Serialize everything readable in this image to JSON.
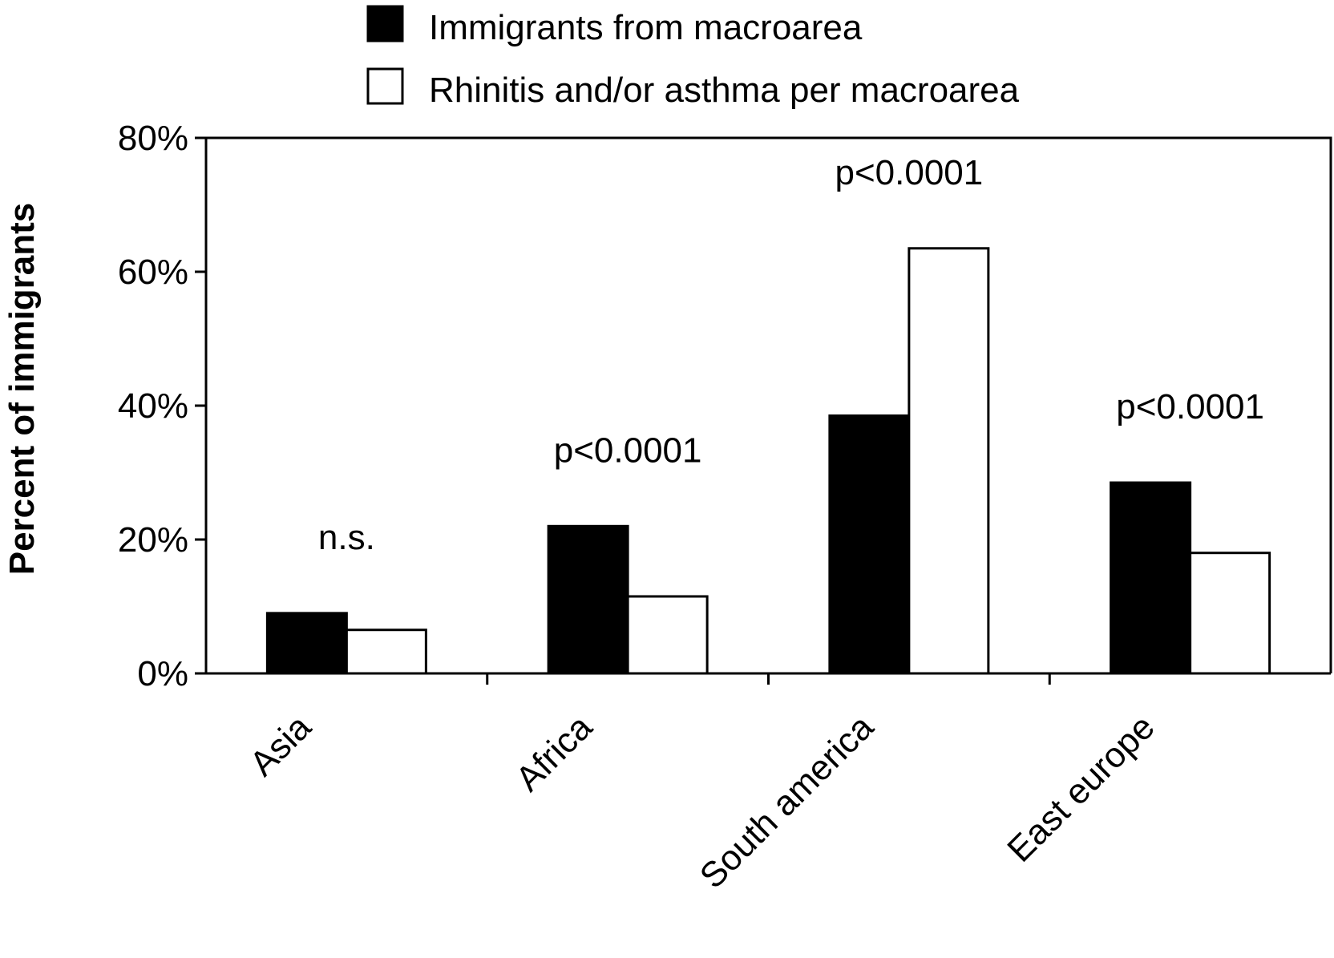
{
  "chart_data": {
    "type": "bar",
    "categories": [
      "Asia",
      "Africa",
      "South america",
      "East europe"
    ],
    "series": [
      {
        "name": "Immigrants from macroarea",
        "values": [
          9,
          22,
          38.5,
          28.5
        ],
        "color": "#000000"
      },
      {
        "name": "Rhinitis and/or asthma per macroarea",
        "values": [
          6.5,
          11.5,
          63.5,
          18
        ],
        "color": "#ffffff"
      }
    ],
    "annotations": [
      "n.s.",
      "p<0.0001",
      "p<0.0001",
      "p<0.0001"
    ],
    "ylabel": "Percent of immigrants",
    "xlabel": "",
    "ylim": [
      0,
      80
    ],
    "yticks": [
      0,
      20,
      40,
      60,
      80
    ],
    "ytick_labels": [
      "0%",
      "20%",
      "40%",
      "60%",
      "80%"
    ],
    "grid": false,
    "legend_position": "top"
  }
}
